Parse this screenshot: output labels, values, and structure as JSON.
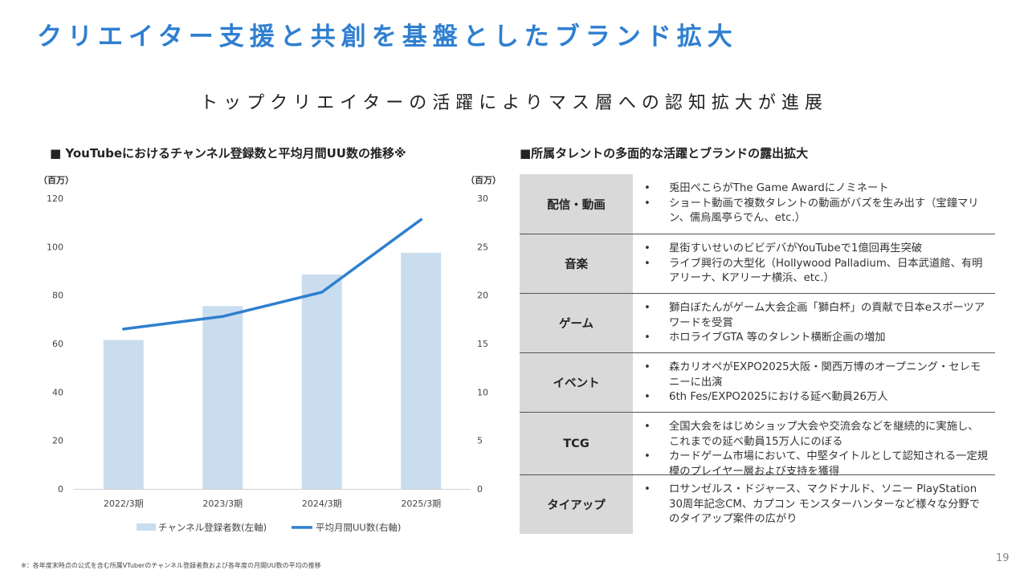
{
  "title": "クリエイター支援と共創を基盤としたブランド拡大",
  "subtitle": "トップクリエイターの活躍によりマス層への認知拡大が進展",
  "left_section_title": "■ YouTubeにおけるチャンネル登録数と平均月間UU数の推移※",
  "right_section_title": "■所属タレントの多面的な活躍とブランドの露出拡大",
  "chart_data": {
    "type": "bar",
    "categories": [
      "2022/3期",
      "2023/3期",
      "2024/3期",
      "2025/3期"
    ],
    "series": [
      {
        "name": "チャンネル登録者数(左軸)",
        "type": "bar",
        "axis": "left",
        "values": [
          61.5,
          75.5,
          88.5,
          97.5
        ],
        "color": "#c9ddee"
      },
      {
        "name": "平均月間UU数(右軸)",
        "type": "line",
        "axis": "right",
        "values": [
          16.5,
          17.8,
          20.3,
          27.8
        ],
        "color": "#2f7fd0"
      }
    ],
    "left_unit": "（百万）",
    "right_unit": "（百万）",
    "ylim_left": [
      0,
      120
    ],
    "ylim_right": [
      0,
      30
    ],
    "yticks_left": [
      "0",
      "20",
      "40",
      "60",
      "80",
      "100",
      "120"
    ],
    "yticks_right": [
      "0",
      "5",
      "10",
      "15",
      "20",
      "25",
      "30"
    ],
    "legend_position": "bottom",
    "grid": false
  },
  "table": [
    {
      "category": "配信・動画",
      "items": [
        "兎田ぺこらがThe Game Awardにノミネート",
        "ショート動画で複数タレントの動画がバズを生み出す（宝鐘マリン、儒烏風亭らでん、etc.）"
      ]
    },
    {
      "category": "音楽",
      "items": [
        "星街すいせいのビビデバがYouTubeで1億回再生突破",
        "ライブ興行の大型化（Hollywood Palladium、日本武道館、有明アリーナ、Kアリーナ横浜、etc.）"
      ]
    },
    {
      "category": "ゲーム",
      "items": [
        "獅白ぼたんがゲーム大会企画「獅白杯」の貢献で日本eスポーツアワードを受賞",
        "ホロライブGTA 等のタレント横断企画の増加"
      ]
    },
    {
      "category": "イベント",
      "items": [
        "森カリオペがEXPO2025大阪・関西万博のオープニング・セレモニーに出演",
        "6th Fes/EXPO2025における延べ動員26万人"
      ]
    },
    {
      "category": "TCG",
      "items": [
        "全国大会をはじめショップ大会や交流会などを継続的に実施し、これまでの延べ動員15万人にのぼる",
        "カードゲーム市場において、中堅タイトルとして認知される一定規模のプレイヤー層および支持を獲得"
      ]
    },
    {
      "category": "タイアップ",
      "items": [
        "ロサンゼルス・ドジャース、マクドナルド、ソニー PlayStation 30周年記念CM、カプコン モンスターハンターなど様々な分野でのタイアップ案件の広がり"
      ]
    }
  ],
  "bullet_char": "•",
  "footnote": "※：各年度末時点の公式を含む所属VTuberのチャンネル登録者数および各年度の月間UU数の平均の推移",
  "page_number": "19"
}
